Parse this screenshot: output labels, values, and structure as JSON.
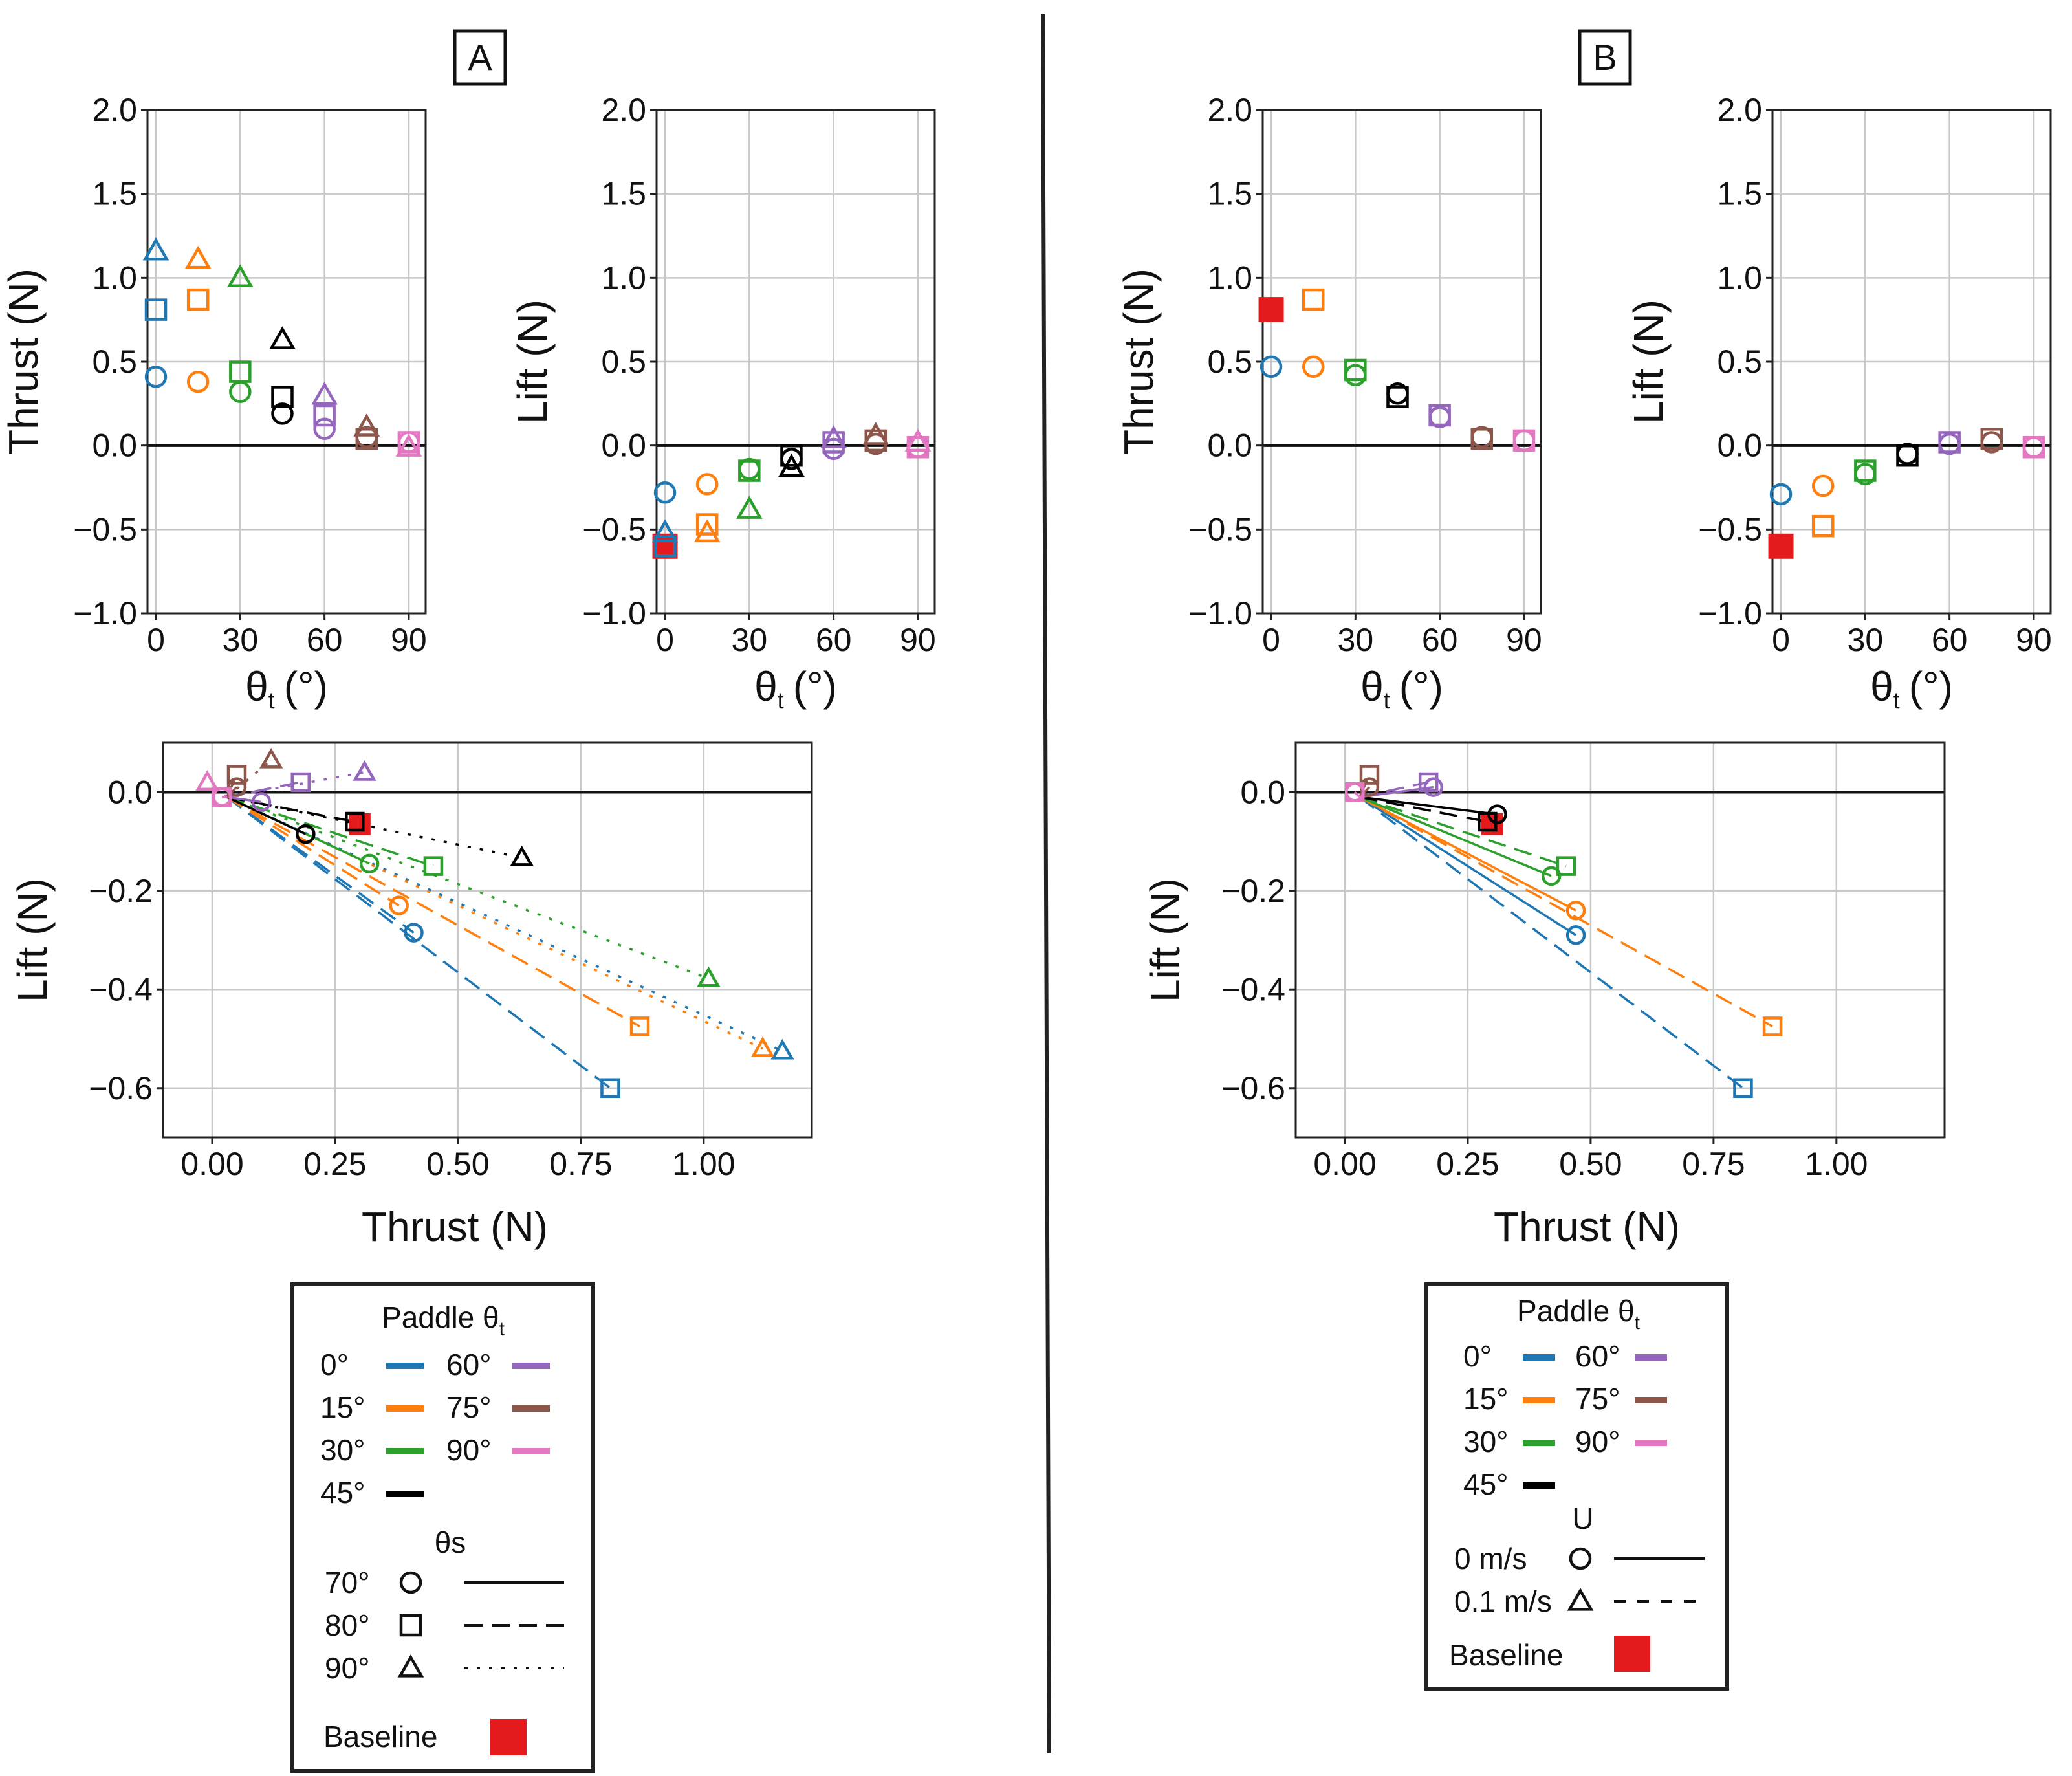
{
  "panel_labels": [
    "A",
    "B"
  ],
  "colors": {
    "0": "#1f77b4",
    "15": "#ff7f0e",
    "30": "#2ca02c",
    "45": "#000000",
    "60": "#9467bd",
    "75": "#8c564b",
    "90": "#e377c2",
    "baseline": "#e41a1c"
  },
  "legend_A": {
    "title": "Paddle θ",
    "title_sub": "t",
    "angles": [
      "0°",
      "15°",
      "30°",
      "45°",
      "60°",
      "75°",
      "90°"
    ],
    "theta_s_title": "θs",
    "theta_s": [
      {
        "label": "70°",
        "marker": "circle",
        "line": "solid"
      },
      {
        "label": "80°",
        "marker": "square",
        "line": "dashed"
      },
      {
        "label": "90°",
        "marker": "triangle",
        "line": "dotted"
      }
    ],
    "baseline": "Baseline"
  },
  "legend_B": {
    "title": "Paddle θ",
    "title_sub": "t",
    "angles": [
      "0°",
      "15°",
      "30°",
      "45°",
      "60°",
      "75°",
      "90°"
    ],
    "u_title": "U",
    "u": [
      {
        "label": "0 m/s",
        "marker": "circle",
        "line": "solid"
      },
      {
        "label": "0.1 m/s",
        "marker": "triangle",
        "line": "dashed"
      }
    ],
    "baseline": "Baseline"
  },
  "chart_data": [
    {
      "id": "A-thrust",
      "type": "scatter",
      "xlabel": "θ",
      "xlabel_sub": "t",
      "xlabel_unit": "(°)",
      "ylabel": "Thrust (N)",
      "xlim": [
        -3,
        96
      ],
      "ylim": [
        -1.0,
        2.0
      ],
      "xticks": [
        0,
        30,
        60,
        90
      ],
      "yticks": [
        -1.0,
        -0.5,
        0.0,
        0.5,
        1.0,
        1.5,
        2.0
      ],
      "ytick_labels": [
        "−1.0",
        "−0.5",
        "0.0",
        "0.5",
        "1.0",
        "1.5",
        "2.0"
      ],
      "points": [
        {
          "x": 0,
          "y": 0.41,
          "m": "circle",
          "c": "0"
        },
        {
          "x": 0,
          "y": 0.81,
          "m": "square",
          "c": "0"
        },
        {
          "x": 0,
          "y": 1.16,
          "m": "triangle",
          "c": "0"
        },
        {
          "x": 15,
          "y": 0.38,
          "m": "circle",
          "c": "15"
        },
        {
          "x": 15,
          "y": 0.87,
          "m": "square",
          "c": "15"
        },
        {
          "x": 15,
          "y": 1.11,
          "m": "triangle",
          "c": "15"
        },
        {
          "x": 30,
          "y": 0.32,
          "m": "circle",
          "c": "30"
        },
        {
          "x": 30,
          "y": 0.44,
          "m": "square",
          "c": "30"
        },
        {
          "x": 30,
          "y": 1.0,
          "m": "triangle",
          "c": "30"
        },
        {
          "x": 45,
          "y": 0.19,
          "m": "circle",
          "c": "45"
        },
        {
          "x": 45,
          "y": 0.29,
          "m": "square",
          "c": "45"
        },
        {
          "x": 45,
          "y": 0.63,
          "m": "triangle",
          "c": "45"
        },
        {
          "x": 60,
          "y": 0.1,
          "m": "circle",
          "c": "60"
        },
        {
          "x": 60,
          "y": 0.18,
          "m": "square",
          "c": "60"
        },
        {
          "x": 60,
          "y": 0.3,
          "m": "triangle",
          "c": "60"
        },
        {
          "x": 75,
          "y": 0.05,
          "m": "circle",
          "c": "75"
        },
        {
          "x": 75,
          "y": 0.04,
          "m": "square",
          "c": "75"
        },
        {
          "x": 75,
          "y": 0.11,
          "m": "triangle",
          "c": "75"
        },
        {
          "x": 90,
          "y": 0.02,
          "m": "circle",
          "c": "90"
        },
        {
          "x": 90,
          "y": 0.02,
          "m": "square",
          "c": "90"
        },
        {
          "x": 90,
          "y": -0.01,
          "m": "triangle",
          "c": "90"
        }
      ]
    },
    {
      "id": "A-lift",
      "type": "scatter",
      "xlabel": "θ",
      "xlabel_sub": "t",
      "xlabel_unit": "(°)",
      "ylabel": "Lift (N)",
      "xlim": [
        -3,
        96
      ],
      "ylim": [
        -1.0,
        2.0
      ],
      "xticks": [
        0,
        30,
        60,
        90
      ],
      "yticks": [
        -1.0,
        -0.5,
        0.0,
        0.5,
        1.0,
        1.5,
        2.0
      ],
      "ytick_labels": [
        "−1.0",
        "−0.5",
        "0.0",
        "0.5",
        "1.0",
        "1.5",
        "2.0"
      ],
      "points": [
        {
          "x": 0,
          "y": -0.6,
          "m": "baseline",
          "c": "baseline"
        },
        {
          "x": 0,
          "y": -0.28,
          "m": "circle",
          "c": "0"
        },
        {
          "x": 0,
          "y": -0.6,
          "m": "square",
          "c": "0"
        },
        {
          "x": 0,
          "y": -0.52,
          "m": "triangle",
          "c": "0"
        },
        {
          "x": 15,
          "y": -0.23,
          "m": "circle",
          "c": "15"
        },
        {
          "x": 15,
          "y": -0.47,
          "m": "square",
          "c": "15"
        },
        {
          "x": 15,
          "y": -0.52,
          "m": "triangle",
          "c": "15"
        },
        {
          "x": 30,
          "y": -0.14,
          "m": "circle",
          "c": "30"
        },
        {
          "x": 30,
          "y": -0.15,
          "m": "square",
          "c": "30"
        },
        {
          "x": 30,
          "y": -0.38,
          "m": "triangle",
          "c": "30"
        },
        {
          "x": 45,
          "y": -0.08,
          "m": "circle",
          "c": "45"
        },
        {
          "x": 45,
          "y": -0.06,
          "m": "square",
          "c": "45"
        },
        {
          "x": 45,
          "y": -0.13,
          "m": "triangle",
          "c": "45"
        },
        {
          "x": 60,
          "y": -0.02,
          "m": "circle",
          "c": "60"
        },
        {
          "x": 60,
          "y": 0.02,
          "m": "square",
          "c": "60"
        },
        {
          "x": 60,
          "y": 0.04,
          "m": "triangle",
          "c": "60"
        },
        {
          "x": 75,
          "y": 0.01,
          "m": "circle",
          "c": "75"
        },
        {
          "x": 75,
          "y": 0.03,
          "m": "square",
          "c": "75"
        },
        {
          "x": 75,
          "y": 0.06,
          "m": "triangle",
          "c": "75"
        },
        {
          "x": 90,
          "y": -0.01,
          "m": "circle",
          "c": "90"
        },
        {
          "x": 90,
          "y": -0.01,
          "m": "square",
          "c": "90"
        },
        {
          "x": 90,
          "y": 0.02,
          "m": "triangle",
          "c": "90"
        }
      ]
    },
    {
      "id": "A-polar",
      "type": "scatter",
      "xlabel": "Thrust (N)",
      "ylabel": "Lift (N)",
      "xlim": [
        -0.1,
        1.22
      ],
      "ylim": [
        -0.7,
        0.1
      ],
      "xticks": [
        0,
        0.25,
        0.5,
        0.75,
        1.0
      ],
      "xtick_labels": [
        "0.00",
        "0.25",
        "0.50",
        "0.75",
        "1.00"
      ],
      "yticks": [
        -0.6,
        -0.4,
        -0.2,
        0.0
      ],
      "ytick_labels": [
        "−0.6",
        "−0.4",
        "−0.2",
        "0.0"
      ],
      "origin": [
        0.03,
        -0.01
      ],
      "points": [
        {
          "x": 0.3,
          "y": -0.065,
          "m": "baseline",
          "c": "baseline"
        },
        {
          "x": 0.41,
          "y": -0.285,
          "m": "circle",
          "c": "0",
          "l": "dashed"
        },
        {
          "x": 0.81,
          "y": -0.6,
          "m": "square",
          "c": "0",
          "l": "dashed"
        },
        {
          "x": 1.16,
          "y": -0.525,
          "m": "triangle",
          "c": "0",
          "l": "dotted"
        },
        {
          "x": 0.38,
          "y": -0.23,
          "m": "circle",
          "c": "15",
          "l": "dashed"
        },
        {
          "x": 0.87,
          "y": -0.475,
          "m": "square",
          "c": "15",
          "l": "dashed"
        },
        {
          "x": 1.12,
          "y": -0.52,
          "m": "triangle",
          "c": "15",
          "l": "dotted"
        },
        {
          "x": 0.32,
          "y": -0.145,
          "m": "circle",
          "c": "30",
          "l": "solid"
        },
        {
          "x": 0.45,
          "y": -0.15,
          "m": "square",
          "c": "30",
          "l": "dashed"
        },
        {
          "x": 1.01,
          "y": -0.378,
          "m": "triangle",
          "c": "30",
          "l": "dotted"
        },
        {
          "x": 0.19,
          "y": -0.085,
          "m": "circle",
          "c": "45",
          "l": "solid"
        },
        {
          "x": 0.29,
          "y": -0.06,
          "m": "square",
          "c": "45",
          "l": "dashed"
        },
        {
          "x": 0.63,
          "y": -0.133,
          "m": "triangle",
          "c": "45",
          "l": "dotted"
        },
        {
          "x": 0.1,
          "y": -0.02,
          "m": "circle",
          "c": "60",
          "l": "solid"
        },
        {
          "x": 0.18,
          "y": 0.02,
          "m": "square",
          "c": "60",
          "l": "dashed"
        },
        {
          "x": 0.31,
          "y": 0.04,
          "m": "triangle",
          "c": "60",
          "l": "dotted"
        },
        {
          "x": 0.05,
          "y": 0.01,
          "m": "circle",
          "c": "75",
          "l": "solid"
        },
        {
          "x": 0.05,
          "y": 0.035,
          "m": "square",
          "c": "75",
          "l": "dashed"
        },
        {
          "x": 0.12,
          "y": 0.065,
          "m": "triangle",
          "c": "75",
          "l": "dotted"
        },
        {
          "x": 0.02,
          "y": -0.01,
          "m": "circle",
          "c": "90",
          "l": "solid"
        },
        {
          "x": 0.02,
          "y": -0.01,
          "m": "square",
          "c": "90",
          "l": "dashed"
        },
        {
          "x": -0.01,
          "y": 0.02,
          "m": "triangle",
          "c": "90",
          "l": "dotted"
        }
      ]
    },
    {
      "id": "B-thrust",
      "type": "scatter",
      "xlabel": "θ",
      "xlabel_sub": "t",
      "xlabel_unit": "(°)",
      "ylabel": "Thrust (N)",
      "xlim": [
        -3,
        96
      ],
      "ylim": [
        -1.0,
        2.0
      ],
      "xticks": [
        0,
        30,
        60,
        90
      ],
      "yticks": [
        -1.0,
        -0.5,
        0.0,
        0.5,
        1.0,
        1.5,
        2.0
      ],
      "ytick_labels": [
        "−1.0",
        "−0.5",
        "0.0",
        "0.5",
        "1.0",
        "1.5",
        "2.0"
      ],
      "points": [
        {
          "x": 0,
          "y": 0.81,
          "m": "baseline",
          "c": "baseline"
        },
        {
          "x": 0,
          "y": 0.47,
          "m": "circle",
          "c": "0"
        },
        {
          "x": 15,
          "y": 0.47,
          "m": "circle",
          "c": "15"
        },
        {
          "x": 15,
          "y": 0.87,
          "m": "square",
          "c": "15"
        },
        {
          "x": 30,
          "y": 0.42,
          "m": "circle",
          "c": "30"
        },
        {
          "x": 30,
          "y": 0.45,
          "m": "square",
          "c": "30"
        },
        {
          "x": 45,
          "y": 0.31,
          "m": "circle",
          "c": "45"
        },
        {
          "x": 45,
          "y": 0.29,
          "m": "square",
          "c": "45"
        },
        {
          "x": 60,
          "y": 0.17,
          "m": "circle",
          "c": "60"
        },
        {
          "x": 60,
          "y": 0.18,
          "m": "square",
          "c": "60"
        },
        {
          "x": 75,
          "y": 0.05,
          "m": "circle",
          "c": "75"
        },
        {
          "x": 75,
          "y": 0.04,
          "m": "square",
          "c": "75"
        },
        {
          "x": 90,
          "y": 0.03,
          "m": "circle",
          "c": "90"
        },
        {
          "x": 90,
          "y": 0.03,
          "m": "square",
          "c": "90"
        }
      ]
    },
    {
      "id": "B-lift",
      "type": "scatter",
      "xlabel": "θ",
      "xlabel_sub": "t",
      "xlabel_unit": "(°)",
      "ylabel": "Lift (N)",
      "xlim": [
        -3,
        96
      ],
      "ylim": [
        -1.0,
        2.0
      ],
      "xticks": [
        0,
        30,
        60,
        90
      ],
      "yticks": [
        -1.0,
        -0.5,
        0.0,
        0.5,
        1.0,
        1.5,
        2.0
      ],
      "ytick_labels": [
        "−1.0",
        "−0.5",
        "0.0",
        "0.5",
        "1.0",
        "1.5",
        "2.0"
      ],
      "points": [
        {
          "x": 0,
          "y": -0.6,
          "m": "baseline",
          "c": "baseline"
        },
        {
          "x": 0,
          "y": -0.29,
          "m": "circle",
          "c": "0"
        },
        {
          "x": 15,
          "y": -0.24,
          "m": "circle",
          "c": "15"
        },
        {
          "x": 15,
          "y": -0.48,
          "m": "square",
          "c": "15"
        },
        {
          "x": 30,
          "y": -0.17,
          "m": "circle",
          "c": "30"
        },
        {
          "x": 30,
          "y": -0.15,
          "m": "square",
          "c": "30"
        },
        {
          "x": 45,
          "y": -0.05,
          "m": "circle",
          "c": "45"
        },
        {
          "x": 45,
          "y": -0.06,
          "m": "square",
          "c": "45"
        },
        {
          "x": 60,
          "y": 0.01,
          "m": "circle",
          "c": "60"
        },
        {
          "x": 60,
          "y": 0.02,
          "m": "square",
          "c": "60"
        },
        {
          "x": 75,
          "y": 0.02,
          "m": "circle",
          "c": "75"
        },
        {
          "x": 75,
          "y": 0.04,
          "m": "square",
          "c": "75"
        },
        {
          "x": 90,
          "y": -0.01,
          "m": "circle",
          "c": "90"
        },
        {
          "x": 90,
          "y": -0.01,
          "m": "square",
          "c": "90"
        }
      ]
    },
    {
      "id": "B-polar",
      "type": "scatter",
      "xlabel": "Thrust (N)",
      "ylabel": "Lift (N)",
      "xlim": [
        -0.1,
        1.22
      ],
      "ylim": [
        -0.7,
        0.1
      ],
      "xticks": [
        0,
        0.25,
        0.5,
        0.75,
        1.0
      ],
      "xtick_labels": [
        "0.00",
        "0.25",
        "0.50",
        "0.75",
        "1.00"
      ],
      "yticks": [
        -0.6,
        -0.4,
        -0.2,
        0.0
      ],
      "ytick_labels": [
        "−0.6",
        "−0.4",
        "−0.2",
        "0.0"
      ],
      "origin": [
        0.03,
        -0.01
      ],
      "points": [
        {
          "x": 0.3,
          "y": -0.065,
          "m": "baseline",
          "c": "baseline"
        },
        {
          "x": 0.47,
          "y": -0.29,
          "m": "circle",
          "c": "0",
          "l": "solid"
        },
        {
          "x": 0.81,
          "y": -0.6,
          "m": "square",
          "c": "0",
          "l": "dashed"
        },
        {
          "x": 0.47,
          "y": -0.24,
          "m": "circle",
          "c": "15",
          "l": "solid"
        },
        {
          "x": 0.87,
          "y": -0.475,
          "m": "square",
          "c": "15",
          "l": "dashed"
        },
        {
          "x": 0.42,
          "y": -0.17,
          "m": "circle",
          "c": "30",
          "l": "solid"
        },
        {
          "x": 0.45,
          "y": -0.15,
          "m": "square",
          "c": "30",
          "l": "dashed"
        },
        {
          "x": 0.31,
          "y": -0.045,
          "m": "circle",
          "c": "45",
          "l": "solid"
        },
        {
          "x": 0.29,
          "y": -0.06,
          "m": "square",
          "c": "45",
          "l": "dashed"
        },
        {
          "x": 0.18,
          "y": 0.01,
          "m": "circle",
          "c": "60",
          "l": "solid"
        },
        {
          "x": 0.17,
          "y": 0.02,
          "m": "square",
          "c": "60",
          "l": "dashed"
        },
        {
          "x": 0.05,
          "y": 0.01,
          "m": "circle",
          "c": "75",
          "l": "solid"
        },
        {
          "x": 0.05,
          "y": 0.035,
          "m": "square",
          "c": "75",
          "l": "dashed"
        },
        {
          "x": 0.02,
          "y": 0.0,
          "m": "circle",
          "c": "90",
          "l": "solid"
        },
        {
          "x": 0.02,
          "y": 0.0,
          "m": "square",
          "c": "90",
          "l": "dashed"
        }
      ]
    }
  ]
}
